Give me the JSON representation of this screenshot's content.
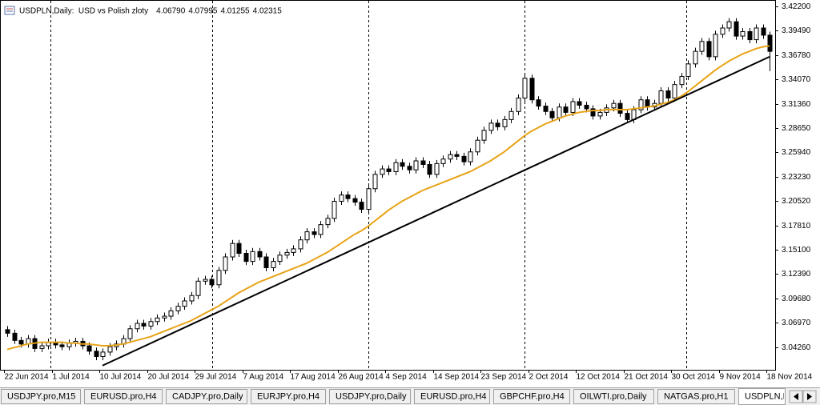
{
  "header": {
    "title": "USDPLN,Daily:  USD vs Polish zloty",
    "quote": [
      "4.06790",
      "4.07995",
      "4.01255",
      "4.02315"
    ]
  },
  "tabs": [
    "USDJPY.pro,M15",
    "EURUSD.pro,H4",
    "CADJPY.pro,Daily",
    "EURJPY.pro,H4",
    "USDJPY.pro,Daily",
    "EURUSD.pro,H4",
    "GBPCHF.pro,H4",
    "OILWTI.pro,Daily",
    "NATGAS.pro,H1",
    "USDPLN,Daily"
  ],
  "chart_data": {
    "type": "candlestick",
    "categories": [
      "22 Jun 2014",
      null,
      null,
      null,
      null,
      null,
      null,
      "1 Jul 2014",
      null,
      null,
      null,
      null,
      null,
      null,
      "10 Jul 2014",
      null,
      null,
      null,
      null,
      null,
      null,
      "20 Jul 2014",
      null,
      null,
      null,
      null,
      null,
      null,
      "29 Jul 2014",
      null,
      null,
      null,
      null,
      null,
      null,
      "7 Aug 2014",
      null,
      null,
      null,
      null,
      null,
      null,
      "17 Aug 2014",
      null,
      null,
      null,
      null,
      null,
      null,
      "26 Aug 2014",
      null,
      null,
      null,
      null,
      null,
      null,
      "4 Sep 2014",
      null,
      null,
      null,
      null,
      null,
      null,
      "14 Sep 2014",
      null,
      null,
      null,
      null,
      null,
      null,
      "23 Sep 2014",
      null,
      null,
      null,
      null,
      null,
      null,
      "2 Oct 2014",
      null,
      null,
      null,
      null,
      null,
      null,
      "12 Oct 2014",
      null,
      null,
      null,
      null,
      null,
      null,
      "21 Oct 2014",
      null,
      null,
      null,
      null,
      null,
      null,
      "30 Oct 2014",
      null,
      null,
      null,
      null,
      null,
      null,
      "9 Nov 2014",
      null,
      null,
      null,
      null,
      null,
      null,
      "18 Nov 2014"
    ],
    "candles": {
      "open": [
        3.062,
        3.058,
        3.05,
        3.046,
        3.052,
        3.041,
        3.044,
        3.048,
        3.045,
        3.043,
        3.047,
        3.049,
        3.044,
        3.038,
        3.032,
        3.037,
        3.043,
        3.046,
        3.052,
        3.063,
        3.069,
        3.066,
        3.071,
        3.075,
        3.077,
        3.083,
        3.088,
        3.094,
        3.1,
        3.116,
        3.118,
        3.112,
        3.128,
        3.143,
        3.158,
        3.147,
        3.138,
        3.149,
        3.143,
        3.131,
        3.138,
        3.145,
        3.148,
        3.152,
        3.162,
        3.171,
        3.168,
        3.179,
        3.186,
        3.205,
        3.212,
        3.208,
        3.204,
        3.196,
        3.219,
        3.235,
        3.241,
        3.238,
        3.248,
        3.244,
        3.24,
        3.25,
        3.246,
        3.235,
        3.247,
        3.252,
        3.257,
        3.255,
        3.249,
        3.26,
        3.273,
        3.284,
        3.292,
        3.288,
        3.296,
        3.305,
        3.32,
        3.342,
        3.318,
        3.311,
        3.305,
        3.298,
        3.31,
        3.304,
        3.316,
        3.312,
        3.308,
        3.3,
        3.304,
        3.309,
        3.314,
        3.303,
        3.296,
        3.307,
        3.318,
        3.31,
        3.314,
        3.328,
        3.32,
        3.335,
        3.344,
        3.358,
        3.372,
        3.383,
        3.366,
        3.391,
        3.398,
        3.405,
        3.389,
        3.394,
        3.385,
        3.398,
        3.39
      ],
      "high": [
        3.066,
        3.062,
        3.054,
        3.056,
        3.056,
        3.048,
        3.052,
        3.052,
        3.049,
        3.051,
        3.053,
        3.053,
        3.048,
        3.042,
        3.041,
        3.047,
        3.05,
        3.056,
        3.067,
        3.073,
        3.073,
        3.075,
        3.079,
        3.081,
        3.087,
        3.092,
        3.098,
        3.104,
        3.12,
        3.122,
        3.122,
        3.132,
        3.147,
        3.162,
        3.162,
        3.151,
        3.153,
        3.153,
        3.147,
        3.142,
        3.149,
        3.152,
        3.156,
        3.166,
        3.175,
        3.175,
        3.183,
        3.19,
        3.209,
        3.216,
        3.216,
        3.212,
        3.208,
        3.223,
        3.239,
        3.245,
        3.245,
        3.252,
        3.252,
        3.248,
        3.254,
        3.254,
        3.25,
        3.251,
        3.256,
        3.261,
        3.261,
        3.259,
        3.264,
        3.277,
        3.288,
        3.296,
        3.296,
        3.3,
        3.309,
        3.324,
        3.346,
        3.346,
        3.322,
        3.315,
        3.309,
        3.314,
        3.314,
        3.32,
        3.32,
        3.316,
        3.312,
        3.308,
        3.313,
        3.318,
        3.318,
        3.307,
        3.311,
        3.322,
        3.322,
        3.318,
        3.332,
        3.332,
        3.339,
        3.348,
        3.362,
        3.376,
        3.387,
        3.387,
        3.395,
        3.402,
        3.409,
        3.409,
        3.398,
        3.398,
        3.402,
        3.402,
        3.394
      ],
      "low": [
        3.054,
        3.046,
        3.042,
        3.042,
        3.037,
        3.037,
        3.04,
        3.041,
        3.039,
        3.039,
        3.043,
        3.04,
        3.034,
        3.028,
        3.028,
        3.033,
        3.039,
        3.042,
        3.048,
        3.059,
        3.062,
        3.062,
        3.067,
        3.071,
        3.073,
        3.079,
        3.084,
        3.09,
        3.096,
        3.112,
        3.108,
        3.108,
        3.124,
        3.139,
        3.143,
        3.134,
        3.134,
        3.139,
        3.127,
        3.127,
        3.134,
        3.141,
        3.144,
        3.148,
        3.158,
        3.164,
        3.164,
        3.175,
        3.182,
        3.201,
        3.204,
        3.2,
        3.192,
        3.192,
        3.215,
        3.231,
        3.234,
        3.234,
        3.24,
        3.236,
        3.236,
        3.242,
        3.231,
        3.231,
        3.243,
        3.248,
        3.251,
        3.245,
        3.245,
        3.256,
        3.269,
        3.28,
        3.284,
        3.284,
        3.292,
        3.301,
        3.316,
        3.314,
        3.307,
        3.301,
        3.294,
        3.294,
        3.3,
        3.3,
        3.308,
        3.304,
        3.296,
        3.296,
        3.3,
        3.305,
        3.299,
        3.292,
        3.292,
        3.303,
        3.306,
        3.306,
        3.31,
        3.316,
        3.316,
        3.331,
        3.34,
        3.354,
        3.368,
        3.362,
        3.362,
        3.387,
        3.394,
        3.385,
        3.385,
        3.381,
        3.381,
        3.386,
        3.35
      ],
      "close": [
        3.058,
        3.05,
        3.046,
        3.052,
        3.041,
        3.044,
        3.048,
        3.045,
        3.043,
        3.047,
        3.049,
        3.044,
        3.038,
        3.032,
        3.037,
        3.043,
        3.046,
        3.052,
        3.063,
        3.069,
        3.066,
        3.071,
        3.075,
        3.077,
        3.083,
        3.088,
        3.094,
        3.1,
        3.116,
        3.118,
        3.112,
        3.128,
        3.143,
        3.158,
        3.147,
        3.138,
        3.149,
        3.143,
        3.131,
        3.138,
        3.145,
        3.148,
        3.152,
        3.162,
        3.171,
        3.168,
        3.179,
        3.186,
        3.205,
        3.212,
        3.208,
        3.204,
        3.196,
        3.219,
        3.235,
        3.241,
        3.238,
        3.248,
        3.244,
        3.24,
        3.25,
        3.246,
        3.235,
        3.247,
        3.252,
        3.257,
        3.255,
        3.249,
        3.26,
        3.273,
        3.284,
        3.292,
        3.288,
        3.296,
        3.305,
        3.32,
        3.342,
        3.318,
        3.311,
        3.305,
        3.298,
        3.31,
        3.304,
        3.316,
        3.312,
        3.308,
        3.3,
        3.304,
        3.309,
        3.314,
        3.303,
        3.296,
        3.307,
        3.318,
        3.31,
        3.314,
        3.328,
        3.32,
        3.335,
        3.344,
        3.358,
        3.372,
        3.383,
        3.366,
        3.391,
        3.398,
        3.405,
        3.389,
        3.394,
        3.385,
        3.398,
        3.39,
        3.372
      ],
      "up_color": "#ffffff",
      "down_color": "#000000",
      "outline_color": "#000000"
    },
    "ma": {
      "color": "#e8a317",
      "values": [
        3.04,
        3.042,
        3.044,
        3.046,
        3.047,
        3.048,
        3.048,
        3.048,
        3.048,
        3.047,
        3.047,
        3.046,
        3.046,
        3.045,
        3.044,
        3.044,
        3.045,
        3.046,
        3.048,
        3.05,
        3.052,
        3.054,
        3.057,
        3.06,
        3.063,
        3.066,
        3.069,
        3.072,
        3.076,
        3.08,
        3.084,
        3.088,
        3.093,
        3.098,
        3.103,
        3.107,
        3.111,
        3.115,
        3.118,
        3.121,
        3.124,
        3.127,
        3.13,
        3.133,
        3.136,
        3.14,
        3.144,
        3.148,
        3.153,
        3.158,
        3.163,
        3.168,
        3.172,
        3.177,
        3.183,
        3.189,
        3.195,
        3.2,
        3.205,
        3.209,
        3.213,
        3.217,
        3.22,
        3.223,
        3.226,
        3.229,
        3.232,
        3.235,
        3.238,
        3.242,
        3.246,
        3.25,
        3.255,
        3.26,
        3.266,
        3.272,
        3.278,
        3.283,
        3.287,
        3.291,
        3.294,
        3.297,
        3.3,
        3.302,
        3.304,
        3.305,
        3.306,
        3.306,
        3.307,
        3.307,
        3.307,
        3.307,
        3.308,
        3.309,
        3.31,
        3.311,
        3.313,
        3.315,
        3.318,
        3.322,
        3.327,
        3.333,
        3.339,
        3.345,
        3.351,
        3.356,
        3.361,
        3.365,
        3.369,
        3.372,
        3.375,
        3.377,
        3.378
      ]
    },
    "trendline": {
      "color": "#000000",
      "x": [
        14,
        112
      ],
      "values": [
        3.022,
        3.366
      ]
    },
    "ylim": [
      3.0173,
      3.4283
    ],
    "yticks": [
      {
        "value": 3.0426,
        "label": "3.04260"
      },
      {
        "value": 3.0697,
        "label": "3.06970"
      },
      {
        "value": 3.0968,
        "label": "3.09680"
      },
      {
        "value": 3.1239,
        "label": "3.12390"
      },
      {
        "value": 3.151,
        "label": "3.15100"
      },
      {
        "value": 3.1781,
        "label": "3.17810"
      },
      {
        "value": 3.2052,
        "label": "3.20520"
      },
      {
        "value": 3.2323,
        "label": "3.23230"
      },
      {
        "value": 3.2594,
        "label": "3.25940"
      },
      {
        "value": 3.2865,
        "label": "3.28650"
      },
      {
        "value": 3.3136,
        "label": "3.31360"
      },
      {
        "value": 3.3407,
        "label": "3.34070"
      },
      {
        "value": 3.3678,
        "label": "3.36780"
      },
      {
        "value": 3.3949,
        "label": "3.39490"
      },
      {
        "value": 3.422,
        "label": "3.42200"
      }
    ],
    "grid": false
  }
}
